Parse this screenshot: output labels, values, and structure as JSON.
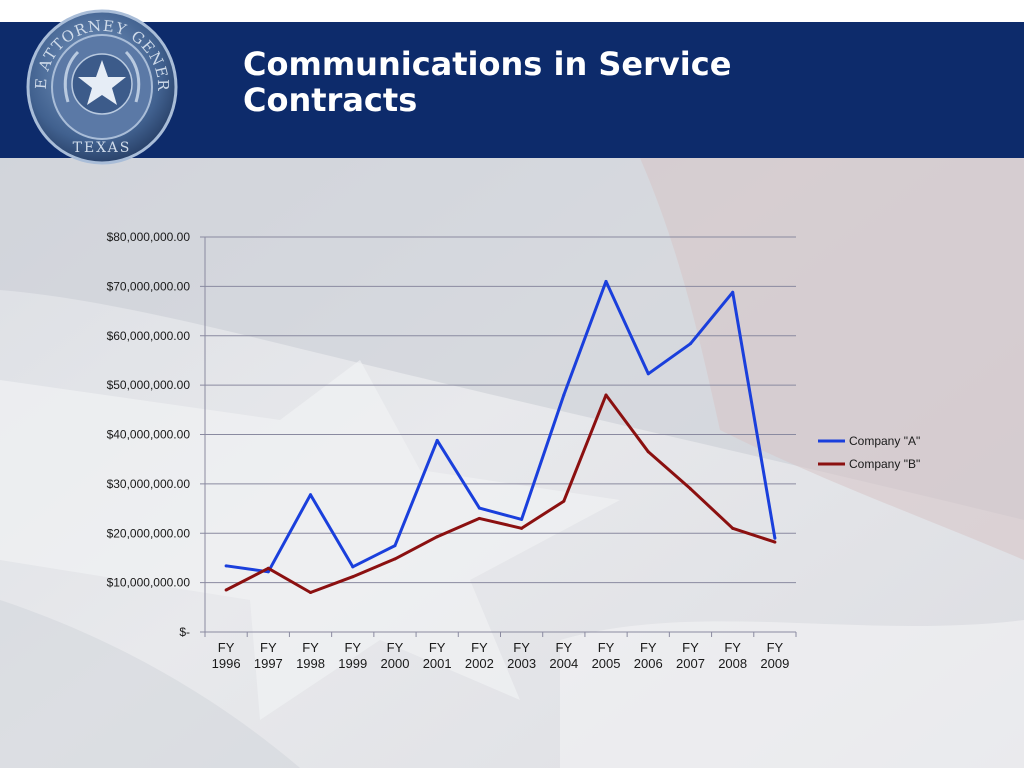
{
  "header": {
    "title_line1": "Communications in Service",
    "title_line2": "Contracts"
  },
  "seal": {
    "top_text": "THE ATTORNEY GENERAL",
    "bottom_text": "TEXAS"
  },
  "colors": {
    "header_bg": "#0d2b6b",
    "company_a": "#1a3fdc",
    "company_b": "#8b1010",
    "gridline": "#8a8aa0"
  },
  "chart_data": {
    "type": "line",
    "categories": [
      "FY 1996",
      "FY 1997",
      "FY 1998",
      "FY 1999",
      "FY 2000",
      "FY 2001",
      "FY 2002",
      "FY 2003",
      "FY 2004",
      "FY 2005",
      "FY 2006",
      "FY 2007",
      "FY 2008",
      "FY 2009"
    ],
    "category_lines": [
      [
        "FY",
        "1996"
      ],
      [
        "FY",
        "1997"
      ],
      [
        "FY",
        "1998"
      ],
      [
        "FY",
        "1999"
      ],
      [
        "FY",
        "2000"
      ],
      [
        "FY",
        "2001"
      ],
      [
        "FY",
        "2002"
      ],
      [
        "FY",
        "2003"
      ],
      [
        "FY",
        "2004"
      ],
      [
        "FY",
        "2005"
      ],
      [
        "FY",
        "2006"
      ],
      [
        "FY",
        "2007"
      ],
      [
        "FY",
        "2008"
      ],
      [
        "FY",
        "2009"
      ]
    ],
    "series": [
      {
        "name": "Company \"A\"",
        "color": "#1a3fdc",
        "values": [
          13400000,
          12200000,
          27800000,
          13200000,
          17500000,
          38800000,
          25100000,
          22800000,
          48000000,
          71000000,
          52300000,
          58400000,
          68800000,
          19000000
        ]
      },
      {
        "name": "Company \"B\"",
        "color": "#8b1010",
        "values": [
          8500000,
          12900000,
          8000000,
          11200000,
          14800000,
          19300000,
          23000000,
          21000000,
          26500000,
          48000000,
          36500000,
          29000000,
          21000000,
          18200000
        ]
      }
    ],
    "ylim": [
      0,
      80000000
    ],
    "y_ticks": [
      0,
      10000000,
      20000000,
      30000000,
      40000000,
      50000000,
      60000000,
      70000000,
      80000000
    ],
    "y_tick_labels": [
      "$-",
      "$10,000,000.00",
      "$20,000,000.00",
      "$30,000,000.00",
      "$40,000,000.00",
      "$50,000,000.00",
      "$60,000,000.00",
      "$70,000,000.00",
      "$80,000,000.00"
    ],
    "grid": true,
    "legend": "right"
  }
}
